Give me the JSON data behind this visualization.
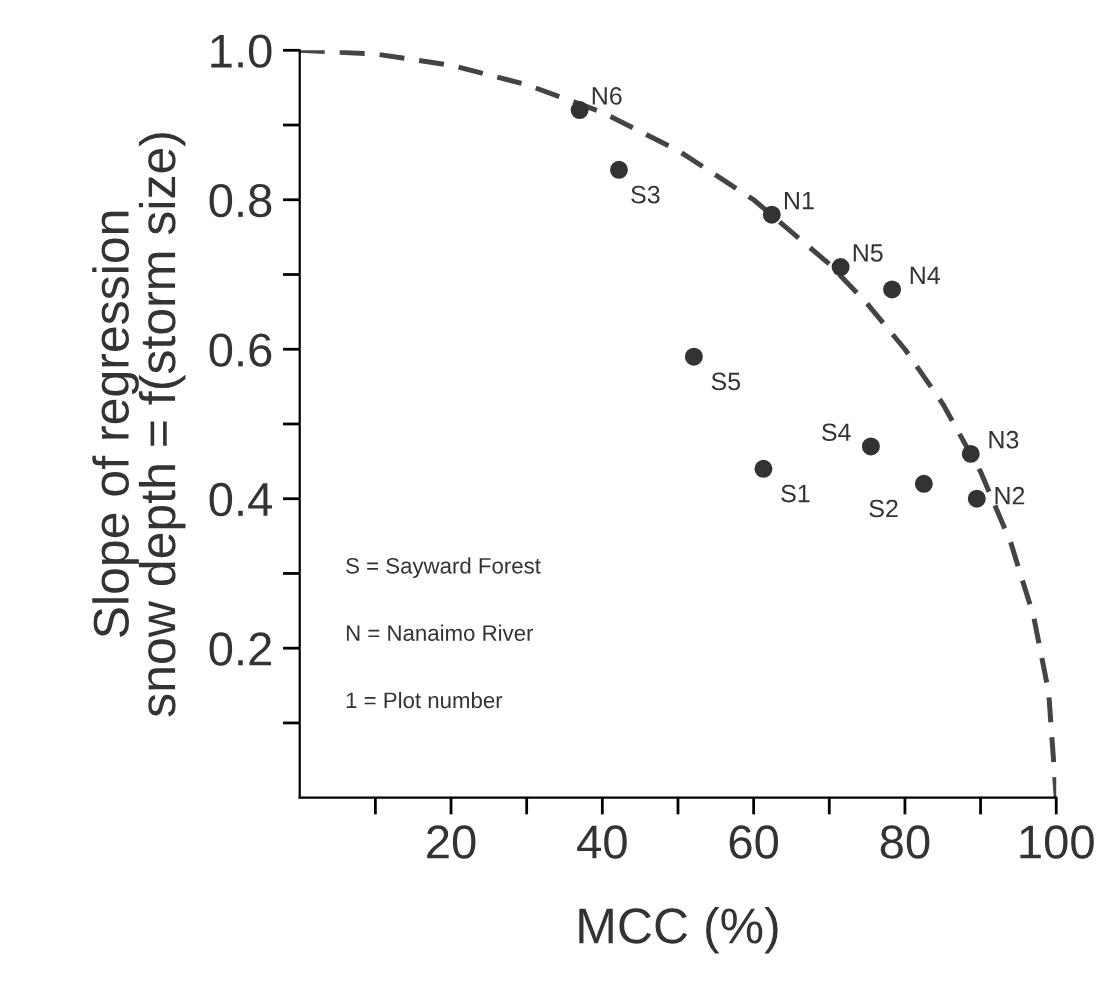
{
  "chart_data": {
    "type": "scatter",
    "xlabel": "MCC (%)",
    "ylabel": "Slope of regression\nsnow depth = f(storm size)",
    "xlim": [
      0,
      100
    ],
    "ylim": [
      0,
      1.0
    ],
    "xticks": [
      {
        "value": 10,
        "label": null
      },
      20,
      {
        "value": 30,
        "label": null
      },
      40,
      {
        "value": 50,
        "label": null
      },
      60,
      {
        "value": 70,
        "label": null
      },
      80,
      {
        "value": 90,
        "label": null
      },
      100
    ],
    "yticks": [
      {
        "value": 0.1,
        "label": null
      },
      0.2,
      {
        "value": 0.3,
        "label": null
      },
      0.4,
      {
        "value": 0.5,
        "label": null
      },
      0.6,
      {
        "value": 0.7,
        "label": null
      },
      0.8,
      {
        "value": 0.9,
        "label": null
      },
      {
        "value": 1.0,
        "label": "1.0"
      }
    ],
    "grid": false,
    "legend": false,
    "marker": "circle",
    "series": [
      {
        "color": "#333333",
        "x": [
          37.0,
          42.2,
          52.1,
          62.4,
          71.5,
          78.3,
          75.5,
          61.3,
          82.5,
          88.7,
          89.5
        ],
        "values": [
          0.92,
          0.84,
          0.59,
          0.78,
          0.71,
          0.68,
          0.47,
          0.44,
          0.42,
          0.46,
          0.4
        ]
      },
      {
        "type": "line",
        "line_style": "dashed",
        "marker": "none",
        "color": "#444444",
        "x": [
          0,
          10,
          20,
          30,
          40,
          50,
          60,
          70,
          75,
          80,
          85,
          90,
          94,
          97,
          99,
          100
        ],
        "values": [
          1.0,
          0.995,
          0.98,
          0.954,
          0.917,
          0.866,
          0.8,
          0.714,
          0.661,
          0.6,
          0.527,
          0.436,
          0.341,
          0.243,
          0.141,
          0
        ]
      }
    ],
    "annotations": [
      {
        "text": "N6",
        "x": 37.0,
        "y": 0.92
      },
      {
        "text": "S3",
        "x": 42.2,
        "y": 0.84
      },
      {
        "text": "S5",
        "x": 52.1,
        "y": 0.59
      },
      {
        "text": "N1",
        "x": 62.4,
        "y": 0.78
      },
      {
        "text": "N5",
        "x": 71.5,
        "y": 0.71
      },
      {
        "text": "N4",
        "x": 78.3,
        "y": 0.68
      },
      {
        "text": "S4",
        "x": 75.5,
        "y": 0.47
      },
      {
        "text": "S1",
        "x": 61.3,
        "y": 0.44
      },
      {
        "text": "S2",
        "x": 82.5,
        "y": 0.42
      },
      {
        "text": "N3",
        "x": 88.7,
        "y": 0.46
      },
      {
        "text": "N2",
        "x": 89.5,
        "y": 0.4
      },
      "S = Sayward Forest",
      "N = Nanaimo River",
      "1 = Plot number"
    ]
  }
}
